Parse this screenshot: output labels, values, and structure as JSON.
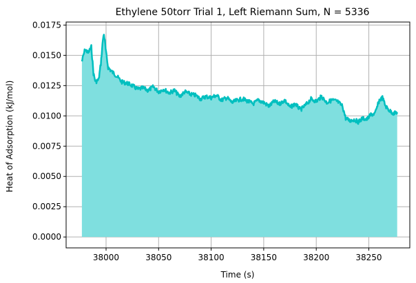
{
  "chart_data": {
    "type": "area",
    "title": "Ethylene 50torr Trial 1, Left Riemann Sum, N = 5336",
    "xlabel": "Time (s)",
    "ylabel": "Heat of Adsorption (kJ/mol)",
    "xlim": [
      37962,
      38289
    ],
    "ylim": [
      -0.0009,
      0.01775
    ],
    "x_ticks": [
      38000,
      38050,
      38100,
      38150,
      38200,
      38250
    ],
    "x_tick_labels": [
      "38000",
      "38050",
      "38100",
      "38150",
      "38200",
      "38250"
    ],
    "y_ticks": [
      0.0,
      0.0025,
      0.005,
      0.0075,
      0.01,
      0.0125,
      0.015,
      0.0175
    ],
    "y_tick_labels": [
      "0.0000",
      "0.0025",
      "0.0050",
      "0.0075",
      "0.0100",
      "0.0125",
      "0.0150",
      "0.0175"
    ],
    "grid": true,
    "colors": {
      "line": "#00bfbf",
      "fill": "#7fdfdf",
      "grid": "#b0b0b0",
      "axis": "#000000"
    },
    "series": [
      {
        "x": [
          37977,
          37980,
          37983,
          37986,
          37988,
          37990,
          37993,
          37995,
          37997,
          37998,
          38000,
          38002,
          38005,
          38010,
          38015,
          38020,
          38025,
          38030,
          38035,
          38040,
          38045,
          38050,
          38055,
          38060,
          38065,
          38070,
          38075,
          38080,
          38085,
          38090,
          38095,
          38100,
          38105,
          38110,
          38115,
          38120,
          38125,
          38130,
          38135,
          38140,
          38145,
          38150,
          38155,
          38160,
          38165,
          38170,
          38175,
          38180,
          38185,
          38190,
          38195,
          38200,
          38205,
          38210,
          38215,
          38220,
          38225,
          38228,
          38232,
          38236,
          38240,
          38244,
          38248,
          38252,
          38256,
          38260,
          38263,
          38266,
          38270,
          38274,
          38277
        ],
        "values": [
          0.0145,
          0.0155,
          0.0152,
          0.0157,
          0.0135,
          0.0128,
          0.013,
          0.0143,
          0.0163,
          0.0168,
          0.0152,
          0.014,
          0.0137,
          0.0133,
          0.0128,
          0.0127,
          0.0125,
          0.0122,
          0.0123,
          0.0121,
          0.0124,
          0.012,
          0.0122,
          0.0119,
          0.0121,
          0.0116,
          0.012,
          0.0118,
          0.0117,
          0.0114,
          0.0116,
          0.0115,
          0.0117,
          0.0113,
          0.0115,
          0.0111,
          0.0113,
          0.0114,
          0.0112,
          0.011,
          0.0113,
          0.0111,
          0.0108,
          0.0112,
          0.011,
          0.0113,
          0.0107,
          0.011,
          0.0105,
          0.0109,
          0.0114,
          0.0112,
          0.0116,
          0.0111,
          0.0113,
          0.0112,
          0.0108,
          0.0098,
          0.0096,
          0.0097,
          0.0095,
          0.0098,
          0.0097,
          0.0101,
          0.0102,
          0.0113,
          0.0115,
          0.0108,
          0.0104,
          0.0102,
          0.0103
        ]
      }
    ]
  }
}
